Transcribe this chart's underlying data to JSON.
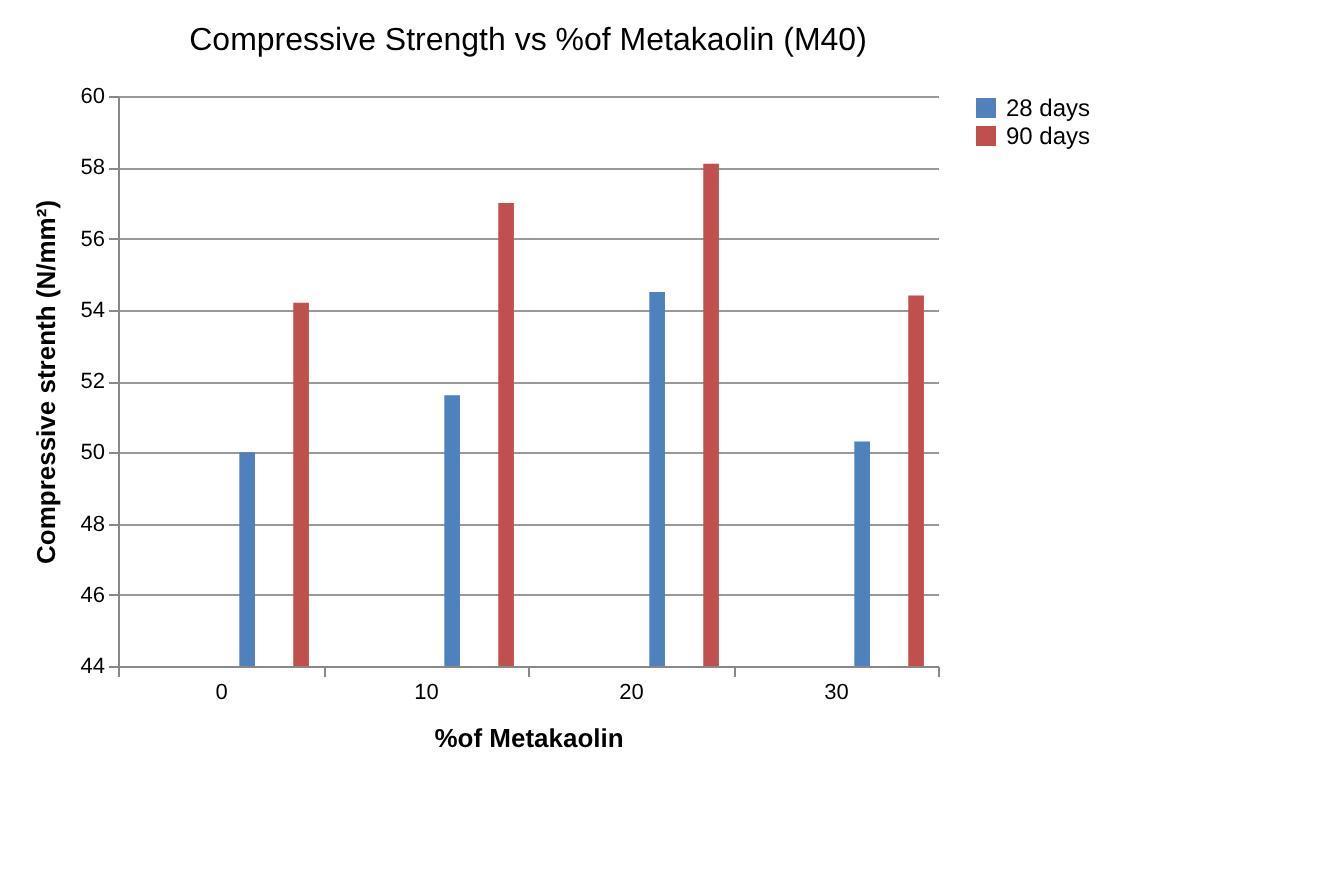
{
  "chart_data": {
    "type": "bar",
    "title": "Compressive Strength vs %of Metakaolin (M40)",
    "xlabel": "%of Metakaolin",
    "ylabel": "Compressive strenth (N/mm²)",
    "categories": [
      "0",
      "10",
      "20",
      "30"
    ],
    "series": [
      {
        "name": "28 days",
        "color": "#4f81bd",
        "values": [
          50.0,
          51.6,
          54.5,
          50.3
        ]
      },
      {
        "name": "90 days",
        "color": "#c0504d",
        "values": [
          54.2,
          57.0,
          58.1,
          54.4
        ]
      }
    ],
    "ylim": [
      44,
      60
    ],
    "yticks": [
      44,
      46,
      48,
      50,
      52,
      54,
      56,
      58,
      60
    ],
    "grid": "y",
    "legend": "right"
  }
}
